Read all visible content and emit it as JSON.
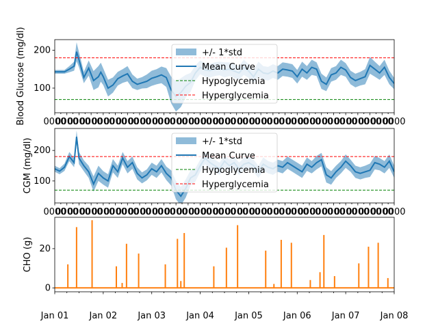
{
  "colors": {
    "mean": "#1f77b4",
    "band": "#1f77b4",
    "hypo": "#008000",
    "hyper": "#ff0000",
    "cho": "#ff7f0e",
    "axis": "#000000"
  },
  "chart_data": [
    {
      "type": "area",
      "ylabel": "Blood Glucose (mg/dl)",
      "ylim": [
        35,
        228
      ],
      "yticks": [
        100,
        200
      ],
      "xlim": [
        0,
        7
      ],
      "x_tick_labels_overlapping": "0000",
      "legend": {
        "placement": "upper center",
        "entries": [
          "+/- 1*std",
          "Mean Curve",
          "Hypoglycemia",
          "Hyperglycemia"
        ]
      },
      "thresholds": {
        "hypoglycemia": 70,
        "hyperglycemia": 180
      },
      "series": [
        {
          "name": "Mean Curve",
          "x": [
            0,
            0.1,
            0.2,
            0.3,
            0.4,
            0.45,
            0.5,
            0.6,
            0.7,
            0.8,
            0.9,
            0.95,
            1.0,
            1.1,
            1.2,
            1.3,
            1.4,
            1.5,
            1.6,
            1.7,
            1.8,
            1.9,
            2.0,
            2.1,
            2.2,
            2.3,
            2.4,
            2.5,
            2.6,
            2.7,
            2.8,
            2.9,
            3.0,
            3.1,
            3.2,
            3.3,
            3.4,
            3.5,
            3.6,
            3.7,
            3.8,
            3.9,
            4.0,
            4.1,
            4.2,
            4.3,
            4.4,
            4.5,
            4.6,
            4.7,
            4.8,
            4.9,
            5.0,
            5.1,
            5.2,
            5.3,
            5.4,
            5.5,
            5.6,
            5.7,
            5.8,
            5.9,
            6.0,
            6.1,
            6.2,
            6.3,
            6.4,
            6.5,
            6.6,
            6.7,
            6.8,
            6.9,
            7.0
          ],
          "y": [
            143,
            143,
            143,
            150,
            158,
            196,
            175,
            128,
            153,
            120,
            130,
            142,
            130,
            100,
            108,
            125,
            132,
            138,
            118,
            110,
            114,
            118,
            126,
            130,
            135,
            128,
            95,
            78,
            88,
            105,
            115,
            140,
            155,
            148,
            146,
            150,
            152,
            148,
            150,
            145,
            140,
            155,
            145,
            130,
            150,
            140,
            138,
            145,
            140,
            150,
            148,
            145,
            130,
            150,
            140,
            155,
            150,
            118,
            110,
            135,
            140,
            155,
            148,
            128,
            120,
            125,
            130,
            160,
            150,
            140,
            155,
            128,
            112
          ],
          "std": [
            5,
            5,
            5,
            8,
            12,
            25,
            20,
            15,
            20,
            25,
            28,
            25,
            22,
            22,
            20,
            18,
            18,
            20,
            18,
            15,
            15,
            18,
            20,
            20,
            22,
            25,
            35,
            40,
            38,
            30,
            25,
            20,
            18,
            18,
            18,
            18,
            18,
            20,
            18,
            18,
            18,
            20,
            18,
            18,
            20,
            18,
            18,
            18,
            18,
            18,
            18,
            18,
            18,
            20,
            18,
            20,
            18,
            20,
            18,
            18,
            18,
            20,
            18,
            18,
            18,
            18,
            20,
            22,
            20,
            18,
            20,
            18,
            15
          ]
        },
        {
          "name": "Hypoglycemia",
          "y": 70
        },
        {
          "name": "Hyperglycemia",
          "y": 180
        }
      ]
    },
    {
      "type": "area",
      "ylabel": "CGM (mg/dl)",
      "ylim": [
        28,
        272
      ],
      "yticks": [
        100,
        200
      ],
      "xlim": [
        0,
        7
      ],
      "x_tick_labels_overlapping": "0000",
      "legend": {
        "placement": "upper center",
        "entries": [
          "+/- 1*std",
          "Mean Curve",
          "Hypoglycemia",
          "Hyperglycemia"
        ]
      },
      "thresholds": {
        "hypoglycemia": 70,
        "hyperglycemia": 180
      },
      "series": [
        {
          "name": "Mean Curve",
          "x": [
            0,
            0.1,
            0.2,
            0.3,
            0.4,
            0.45,
            0.5,
            0.6,
            0.7,
            0.8,
            0.9,
            1.0,
            1.1,
            1.2,
            1.3,
            1.4,
            1.5,
            1.6,
            1.7,
            1.8,
            1.9,
            2.0,
            2.1,
            2.2,
            2.3,
            2.4,
            2.5,
            2.6,
            2.7,
            2.8,
            2.9,
            3.0,
            3.1,
            3.2,
            3.3,
            3.4,
            3.5,
            3.6,
            3.7,
            3.8,
            3.9,
            4.0,
            4.1,
            4.2,
            4.3,
            4.4,
            4.5,
            4.6,
            4.7,
            4.8,
            4.9,
            5.0,
            5.1,
            5.2,
            5.3,
            5.4,
            5.5,
            5.6,
            5.7,
            5.8,
            5.9,
            6.0,
            6.1,
            6.2,
            6.3,
            6.4,
            6.5,
            6.6,
            6.7,
            6.8,
            6.9,
            7.0
          ],
          "y": [
            140,
            132,
            145,
            180,
            160,
            245,
            175,
            150,
            130,
            90,
            125,
            110,
            100,
            150,
            130,
            175,
            145,
            160,
            125,
            110,
            120,
            140,
            130,
            150,
            125,
            110,
            70,
            50,
            75,
            110,
            120,
            150,
            175,
            160,
            150,
            140,
            165,
            150,
            160,
            140,
            155,
            160,
            150,
            130,
            155,
            145,
            140,
            150,
            145,
            160,
            150,
            140,
            130,
            155,
            145,
            160,
            170,
            120,
            110,
            130,
            145,
            165,
            150,
            130,
            125,
            130,
            135,
            160,
            155,
            145,
            165,
            130
          ],
          "std": [
            10,
            10,
            12,
            15,
            15,
            20,
            20,
            18,
            20,
            25,
            25,
            22,
            22,
            22,
            20,
            20,
            20,
            20,
            20,
            18,
            18,
            20,
            20,
            22,
            22,
            25,
            30,
            30,
            30,
            25,
            22,
            20,
            20,
            20,
            20,
            20,
            20,
            20,
            20,
            20,
            20,
            20,
            20,
            20,
            22,
            20,
            20,
            20,
            20,
            20,
            20,
            20,
            20,
            22,
            20,
            22,
            22,
            25,
            22,
            20,
            20,
            22,
            20,
            20,
            20,
            20,
            22,
            22,
            20,
            20,
            22,
            20
          ]
        },
        {
          "name": "Hypoglycemia",
          "y": 70
        },
        {
          "name": "Hyperglycemia",
          "y": 180
        }
      ]
    },
    {
      "type": "bar",
      "ylabel": "CHO (g)",
      "ylim": [
        -2,
        36
      ],
      "yticks": [
        0,
        20
      ],
      "xlim": [
        0,
        7
      ],
      "x_tick_labels": [
        "Jan 01",
        "Jan 02",
        "Jan 03",
        "Jan 04",
        "Jan 05",
        "Jan 06",
        "Jan 07",
        "Jan 08"
      ],
      "series": [
        {
          "name": "CHO",
          "x": [
            0.27,
            0.45,
            0.77,
            1.27,
            1.39,
            1.48,
            1.73,
            2.28,
            2.53,
            2.6,
            2.67,
            3.28,
            3.54,
            3.77,
            4.35,
            4.52,
            4.67,
            4.88,
            5.27,
            5.47,
            5.55,
            5.77,
            6.27,
            6.47,
            6.67,
            6.87
          ],
          "y": [
            12,
            31,
            34.5,
            11,
            2.5,
            22.5,
            17.5,
            12,
            25,
            3.5,
            28,
            11,
            20.5,
            32,
            19,
            2,
            24.5,
            23,
            4,
            8,
            27,
            6,
            12.5,
            21,
            23,
            5
          ]
        }
      ]
    }
  ]
}
